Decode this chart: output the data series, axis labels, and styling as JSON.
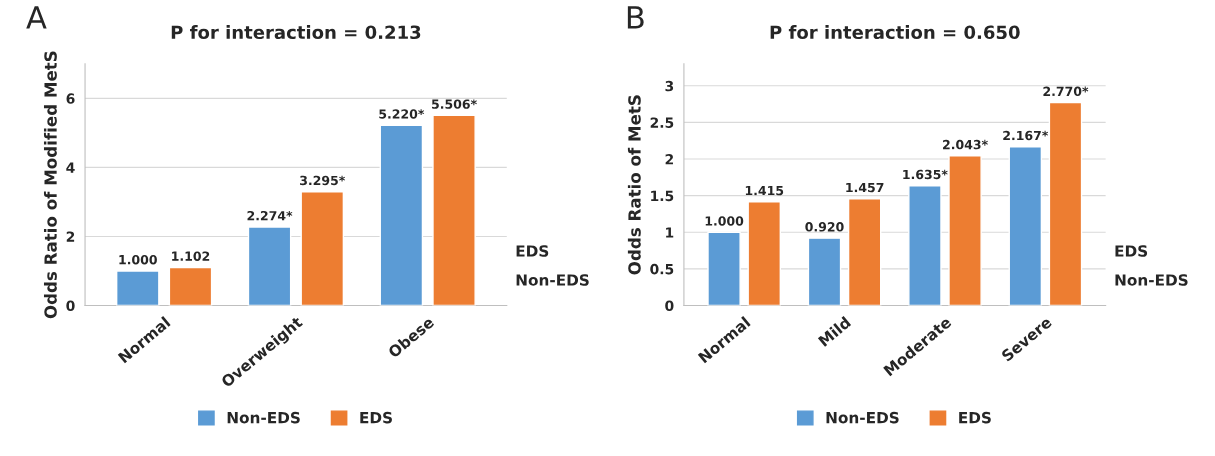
{
  "chart_data": [
    {
      "type": "bar",
      "title": "P for interaction = 0.213",
      "ylabel": "Odds Ratio of Modified MetS",
      "categories": [
        "Normal",
        "Overweight",
        "Obese"
      ],
      "series": [
        {
          "name": "Non-EDS",
          "color": "#5b9bd5",
          "values": [
            1.0,
            2.274,
            5.22
          ],
          "value_labels": [
            "1.000",
            "2.274*",
            "5.220*"
          ]
        },
        {
          "name": "EDS",
          "color": "#ed7d31",
          "values": [
            1.102,
            3.295,
            5.506
          ],
          "value_labels": [
            "1.102",
            "3.295*",
            "5.506*"
          ]
        }
      ],
      "ylim": [
        0,
        7
      ],
      "yticks": [
        0,
        2,
        4,
        6
      ],
      "grid": "y",
      "legend": "bottom",
      "annotations": [
        "A",
        "EDS",
        "Non-EDS"
      ]
    },
    {
      "type": "bar",
      "title": "P for interaction = 0.650",
      "ylabel": "Odds Ratio of MetS",
      "categories": [
        "Normal",
        "Mild",
        "Moderate",
        "Severe"
      ],
      "series": [
        {
          "name": "Non-EDS",
          "color": "#5b9bd5",
          "values": [
            1.0,
            0.92,
            1.635,
            2.167
          ],
          "value_labels": [
            "1.000",
            "0.920",
            "1.635*",
            "2.167*"
          ]
        },
        {
          "name": "EDS",
          "color": "#ed7d31",
          "values": [
            1.415,
            1.457,
            2.043,
            2.77
          ],
          "value_labels": [
            "1.415",
            "1.457",
            "2.043*",
            "2.770*"
          ]
        }
      ],
      "ylim": [
        0,
        3.3
      ],
      "yticks": [
        0,
        0.5,
        1,
        1.5,
        2,
        2.5,
        3
      ],
      "grid": "y",
      "legend": "bottom",
      "annotations": [
        "B",
        "EDS",
        "Non-EDS"
      ]
    }
  ]
}
